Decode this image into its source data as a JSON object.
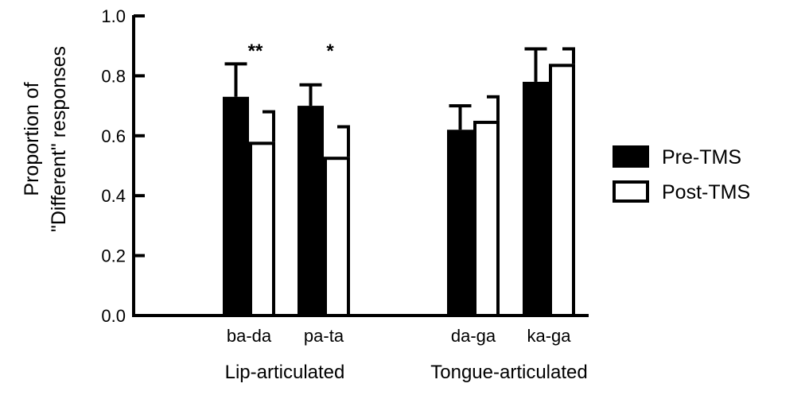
{
  "chart_data": {
    "type": "bar",
    "ylabel": [
      "Proportion of",
      "\"Different\" responses"
    ],
    "ylim": [
      0,
      1.0
    ],
    "yticks": [
      "0.0",
      "0.2",
      "0.4",
      "0.6",
      "0.8",
      "1.0"
    ],
    "categories": [
      "ba-da",
      "pa-ta",
      "da-ga",
      "ka-ga"
    ],
    "groups": [
      {
        "label": "Lip-articulated",
        "categories": [
          "ba-da",
          "pa-ta"
        ]
      },
      {
        "label": "Tongue-articulated",
        "categories": [
          "da-ga",
          "ka-ga"
        ]
      }
    ],
    "series": [
      {
        "name": "Pre-TMS",
        "color": "#000000",
        "fill": "solid",
        "values": [
          0.73,
          0.7,
          0.62,
          0.78
        ],
        "errors": [
          0.11,
          0.07,
          0.08,
          0.11
        ]
      },
      {
        "name": "Post-TMS",
        "color": "#ffffff",
        "fill": "open",
        "values": [
          0.58,
          0.53,
          0.65,
          0.84
        ],
        "errors": [
          0.1,
          0.1,
          0.08,
          0.05
        ]
      }
    ],
    "significance": [
      {
        "category": "ba-da",
        "label": "**"
      },
      {
        "category": "pa-ta",
        "label": "*"
      }
    ],
    "legend_position": "right",
    "grid": false
  }
}
